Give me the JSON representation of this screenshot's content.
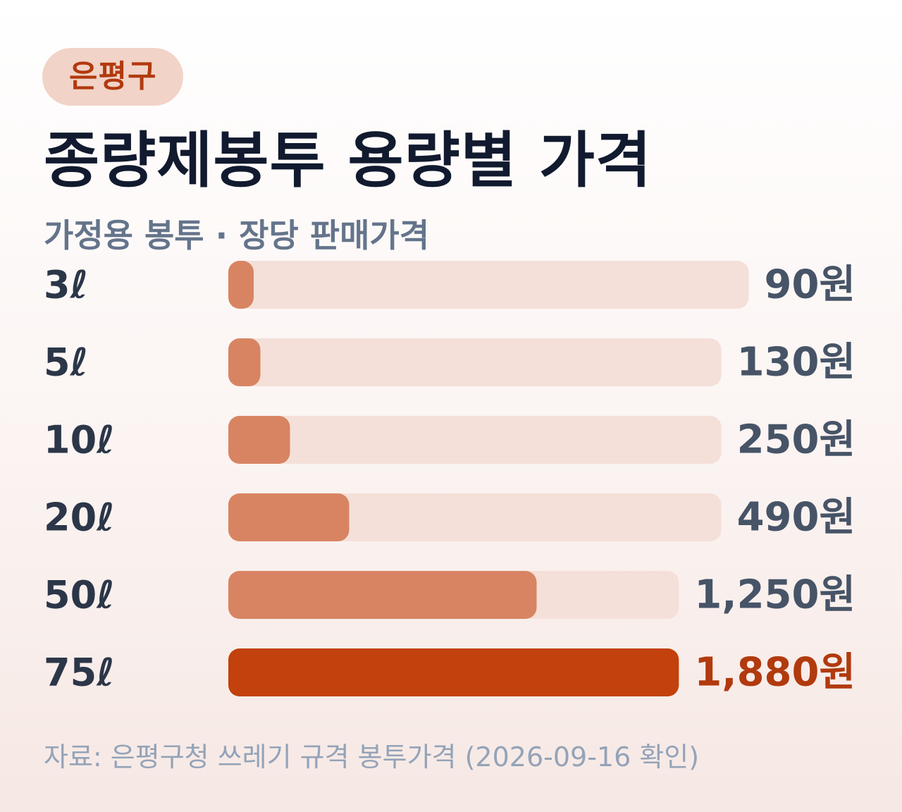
{
  "badge": "은평구",
  "title": "종량제봉투 용량별 가격",
  "subtitle": "가정용 봉투 · 장당 판매가격",
  "source": "자료: 은평구청 쓰레기 규격 봉투가격 (2026-09-16 확인)",
  "colors": {
    "track": "#f4e0d9",
    "bar": "#d88462",
    "bar_highlight": "#c2410c",
    "value_text": "#475467",
    "value_highlight": "#b13a0e"
  },
  "chart_data": {
    "type": "bar",
    "orientation": "horizontal",
    "categories": [
      "3ℓ",
      "5ℓ",
      "10ℓ",
      "20ℓ",
      "50ℓ",
      "75ℓ"
    ],
    "values": [
      90,
      130,
      250,
      490,
      1250,
      1880
    ],
    "value_labels": [
      "90원",
      "130원",
      "250원",
      "490원",
      "1,250원",
      "1,880원"
    ],
    "highlight": "75ℓ",
    "xlim": [
      0,
      1880
    ]
  }
}
